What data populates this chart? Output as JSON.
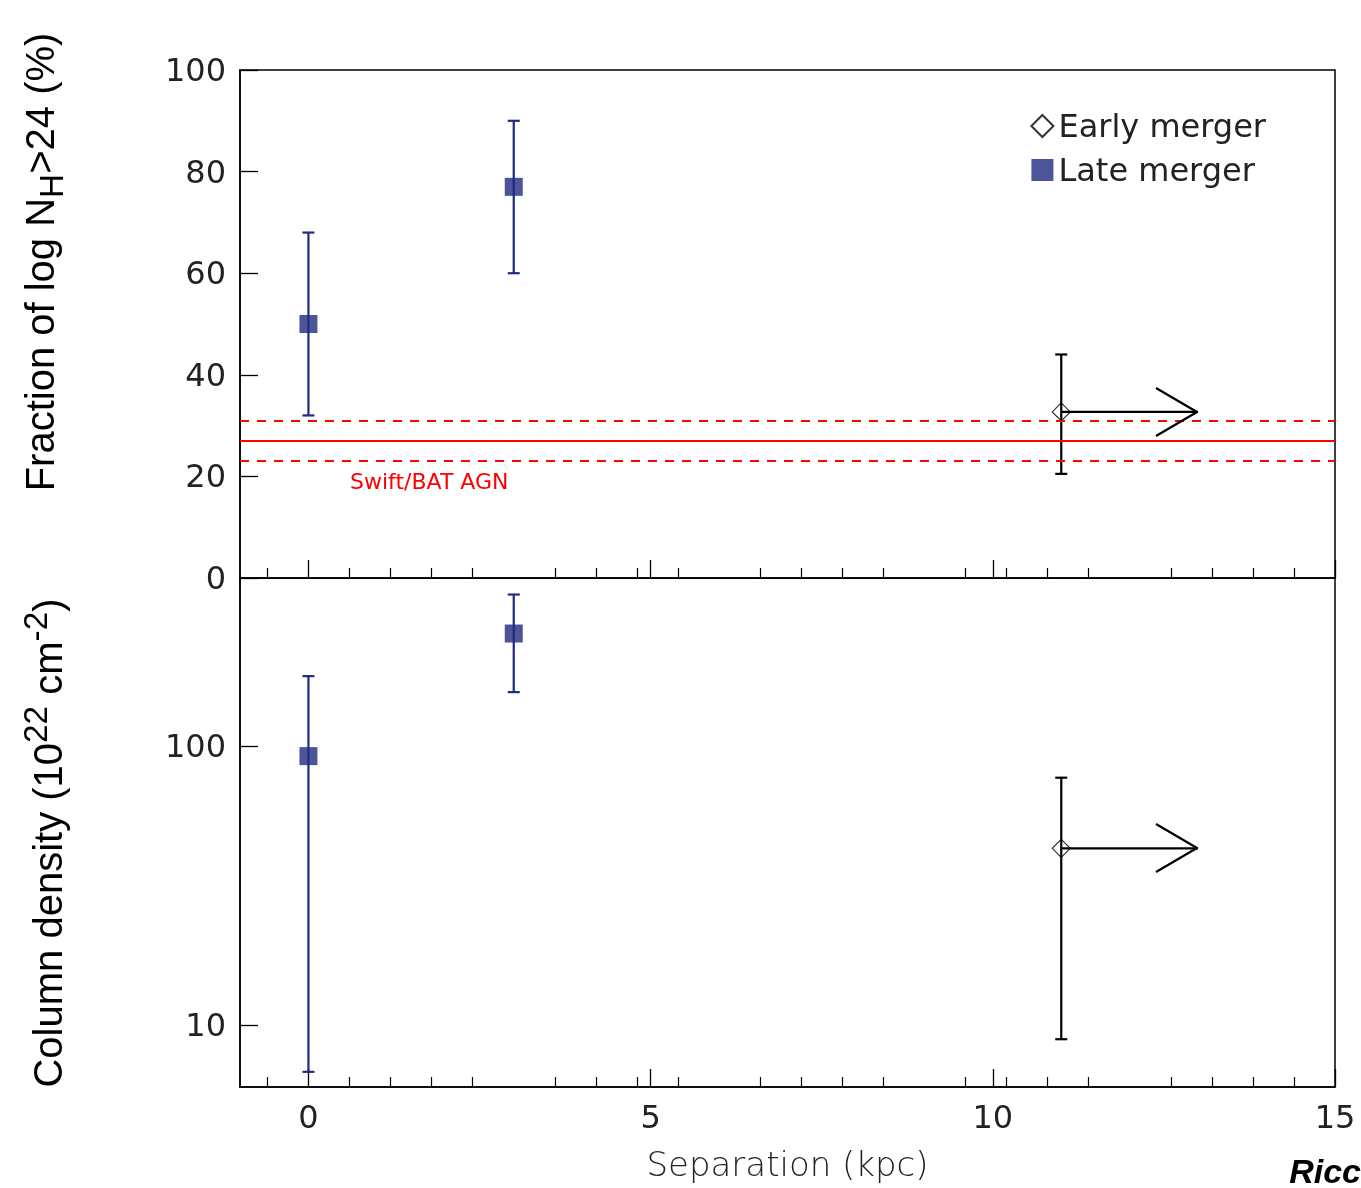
{
  "chart_data": [
    {
      "type": "scatter",
      "ylabel": "Fraction of log N$_{H}$>24 (%)",
      "xlim": [
        -1,
        15
      ],
      "xticks": [
        0,
        5,
        10,
        15
      ],
      "ylim": [
        0,
        100
      ],
      "yticks": [
        0,
        20,
        40,
        60,
        80,
        100
      ],
      "tick_labels": "y",
      "legend": "top right",
      "series": [
        {
          "name": "Early merger",
          "color": "#000000",
          "marker": "diamond",
          "x": [
            11
          ],
          "values": [
            32.7
          ],
          "errors": [
            [
              20.5,
              44
            ]
          ],
          "xerrors": [
            [
              11,
              13
            ]
          ]
        },
        {
          "name": "Late merger",
          "color": "#1f2a80",
          "marker": "square",
          "x": [
            0,
            3
          ],
          "values": [
            50,
            77
          ],
          "errors": [
            [
              32,
              68
            ],
            [
              60,
              90
            ]
          ]
        }
      ],
      "ref_lines": [
        {
          "axis": "y",
          "value": 27,
          "label": "Swift/BAT AGN",
          "color": "#ff0000",
          "line_style": "solid"
        },
        {
          "axis": "y",
          "value": 31,
          "label": null,
          "color": "#ff0000",
          "line_style": "dashed"
        },
        {
          "axis": "y",
          "value": 23,
          "label": null,
          "color": "#ff0000",
          "line_style": "dashed"
        }
      ]
    },
    {
      "type": "scatter",
      "ylabel": "Column density (10$^{22}$ cm$^{-2}$)",
      "xlabel": "Separation (kpc)",
      "xlim": [
        -1,
        15
      ],
      "xticks": [
        0,
        5,
        10,
        15
      ],
      "ylim": [
        6,
        400
      ],
      "log": "y",
      "yticks": [
        10,
        100
      ],
      "annotations": [
        "Ricc"
      ],
      "series": [
        {
          "color": "#000000",
          "marker": "diamond",
          "x": [
            11
          ],
          "values": [
            43
          ],
          "errors": [
            [
              8.9,
              77
            ]
          ],
          "xerrors": [
            [
              11,
              13
            ]
          ]
        },
        {
          "color": "#1f2a80",
          "marker": "square",
          "x": [
            0,
            3
          ],
          "values": [
            92,
            253
          ],
          "errors": [
            [
              6.8,
              178
            ],
            [
              156,
              349
            ]
          ]
        }
      ]
    }
  ]
}
